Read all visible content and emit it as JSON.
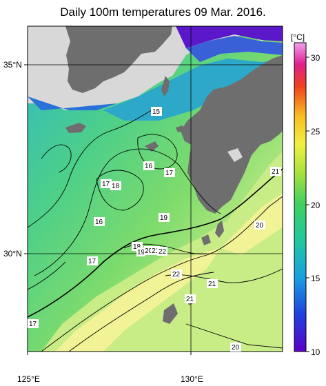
{
  "title": "Daily 100m temperatures 09 Mar. 2016.",
  "axes": {
    "lat_labels": [
      "35°N",
      "30°N"
    ],
    "lon_labels": [
      "125°E",
      "130°E"
    ]
  },
  "colorbar": {
    "unit": "[°C]",
    "ticks": [
      "30",
      "25",
      "20",
      "15",
      "10"
    ],
    "range": [
      10,
      31
    ]
  },
  "contour_labels": [
    "15",
    "16",
    "17",
    "17",
    "18",
    "16",
    "19",
    "17",
    "18",
    "19",
    "20",
    "21",
    "22",
    "22",
    "21",
    "21",
    "20",
    "21",
    "20",
    "17"
  ],
  "colors": {
    "land": "#6f6f6f",
    "nodata": "#d9d9d9",
    "warm": "#f4f08a",
    "mid": "#7fd86e",
    "cool": "#35c2a6",
    "cold": "#2a6fd6",
    "coldest": "#5a19c8"
  }
}
